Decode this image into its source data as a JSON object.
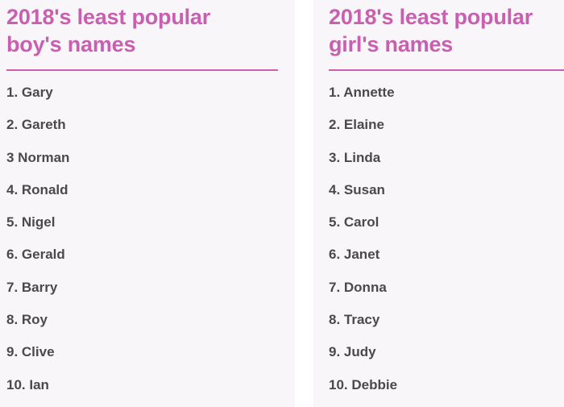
{
  "boys": {
    "title_line1": "2018's least popular",
    "title_line2": "boy's names",
    "names": [
      "1. Gary",
      "2. Gareth",
      "3 Norman",
      "4. Ronald",
      "5. Nigel",
      "6. Gerald",
      "7. Barry",
      "8. Roy",
      "9. Clive",
      "10. Ian"
    ]
  },
  "girls": {
    "title_line1": "2018's least popular",
    "title_line2": "girl's names",
    "names": [
      "1. Annette",
      "2. Elaine",
      "3. Linda",
      "4. Susan",
      "5. Carol",
      "6. Janet",
      "7. Donna",
      "8. Tracy",
      "9. Judy",
      "10. Debbie"
    ]
  },
  "colors": {
    "title": "#c95fb0",
    "rule": "#c95fb0",
    "text": "#4a4a4a",
    "panel_background": "#f8f6f8"
  }
}
